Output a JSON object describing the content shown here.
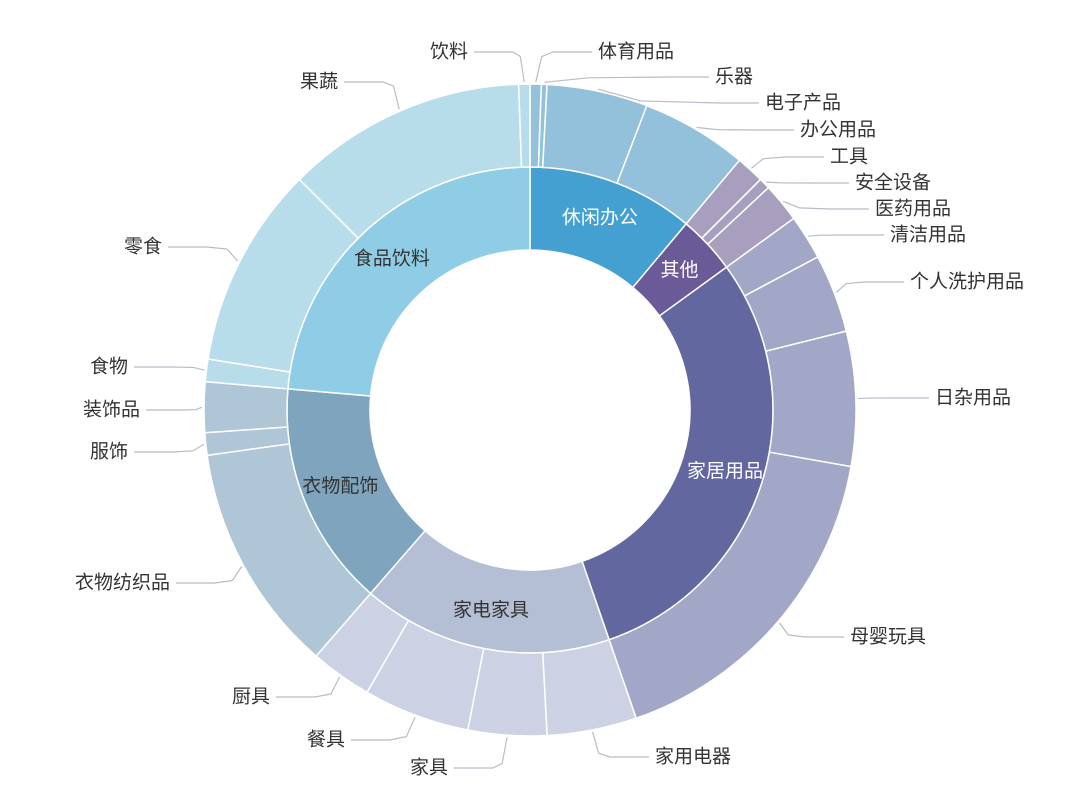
{
  "chart_data": {
    "type": "sunburst",
    "nodes": [
      {
        "name": "休闲办公",
        "value": 40,
        "color": "#45a0d2",
        "child_color": "#93c0da",
        "children": [
          {
            "name": "体育用品",
            "value": 2
          },
          {
            "name": "乐器",
            "value": 1
          },
          {
            "name": "电子产品",
            "value": 18
          },
          {
            "name": "办公用品",
            "value": 19
          }
        ]
      },
      {
        "name": "其他",
        "value": 14,
        "color": "#6b5a98",
        "child_color": "#a89fbe",
        "children": [
          {
            "name": "工具",
            "value": 5
          },
          {
            "name": "安全设备",
            "value": 2
          },
          {
            "name": "医药用品",
            "value": 7
          }
        ]
      },
      {
        "name": "家居用品",
        "value": 107,
        "color": "#63679f",
        "child_color": "#a3a7c7",
        "children": [
          {
            "name": "清洁用品",
            "value": 8
          },
          {
            "name": "个人洗护用品",
            "value": 14
          },
          {
            "name": "日杂用品",
            "value": 24
          },
          {
            "name": "母婴玩具",
            "value": 61
          }
        ]
      },
      {
        "name": "家电家具",
        "value": 60,
        "color": "#b4bed5",
        "child_color": "#ccd2e3",
        "children": [
          {
            "name": "家用电器",
            "value": 16
          },
          {
            "name": "家具",
            "value": 14
          },
          {
            "name": "餐具",
            "value": 19
          },
          {
            "name": "厨具",
            "value": 11
          }
        ]
      },
      {
        "name": "衣物配饰",
        "value": 54,
        "color": "#7fa4be",
        "child_color": "#afc6d6",
        "children": [
          {
            "name": "衣物纺织品",
            "value": 41
          },
          {
            "name": "服饰",
            "value": 4
          },
          {
            "name": "装饰品",
            "value": 9
          }
        ]
      },
      {
        "name": "食品饮料",
        "value": 85,
        "color": "#8fcde6",
        "child_color": "#b7dcea",
        "children": [
          {
            "name": "食物",
            "value": 4
          },
          {
            "name": "零食",
            "value": 36
          },
          {
            "name": "果蔬",
            "value": 43
          },
          {
            "name": "饮料",
            "value": 2
          }
        ]
      }
    ]
  }
}
